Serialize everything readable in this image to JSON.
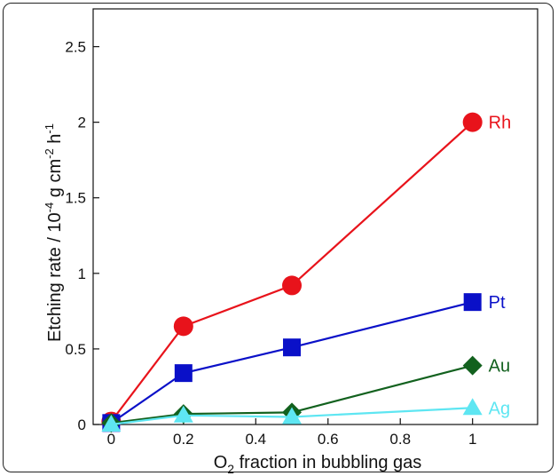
{
  "chart_data": {
    "type": "line",
    "xlabel_main": "O",
    "xlabel_sub": "2",
    "xlabel_rest": " fraction in bubbling gas",
    "ylabel_main": "Etching rate / 10",
    "ylabel_exp1": "-4",
    "ylabel_mid": " g cm",
    "ylabel_exp2": "-2",
    "ylabel_h": " h",
    "ylabel_exp3": "-1",
    "xlim": [
      -0.05,
      1.18
    ],
    "ylim": [
      0,
      2.75
    ],
    "xticks": [
      0,
      0.2,
      0.4,
      0.6,
      0.8,
      1
    ],
    "xtick_labels": [
      "0",
      "0.2",
      "0.4",
      "0.6",
      "0.8",
      "1"
    ],
    "yticks": [
      0,
      0.5,
      1,
      1.5,
      2,
      2.5
    ],
    "ytick_labels": [
      "0",
      "0.5",
      "1",
      "1.5",
      "2",
      "2.5"
    ],
    "series": [
      {
        "name": "Rh",
        "marker": "circle",
        "color": "#e8131b",
        "x": [
          0,
          0.2,
          0.5,
          1
        ],
        "y": [
          0.02,
          0.65,
          0.92,
          2.0
        ]
      },
      {
        "name": "Pt",
        "marker": "square",
        "color": "#0a10c8",
        "x": [
          0,
          0.2,
          0.5,
          1
        ],
        "y": [
          0.01,
          0.34,
          0.51,
          0.81
        ]
      },
      {
        "name": "Au",
        "marker": "diamond",
        "color": "#12611e",
        "x": [
          0,
          0.2,
          0.5,
          1
        ],
        "y": [
          0.01,
          0.07,
          0.08,
          0.39
        ]
      },
      {
        "name": "Ag",
        "marker": "triangle",
        "color": "#5ee6f2",
        "x": [
          0,
          0.2,
          0.5,
          1
        ],
        "y": [
          0.0,
          0.06,
          0.05,
          0.11
        ]
      }
    ]
  }
}
